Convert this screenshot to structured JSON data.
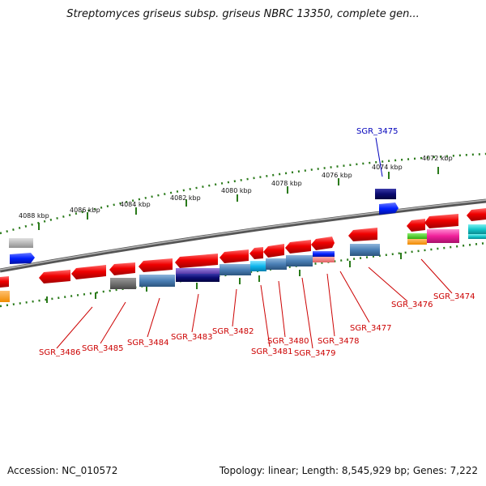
{
  "title": "Streptomyces griseus subsp. griseus NBRC 13350, complete gen...",
  "footer": {
    "accession": "Accession: NC_010572",
    "summary": "Topology: linear; Length: 8,545,929 bp; Genes: 7,222"
  },
  "scale_labels": [
    "4088 kbp",
    "4086 kbp",
    "4084 kbp",
    "4082 kbp",
    "4080 kbp",
    "4078 kbp",
    "4076 kbp",
    "4074 kbp",
    "4072 kbp"
  ],
  "gene_labels": [
    {
      "name": "SGR_3486",
      "color": "#cc0000"
    },
    {
      "name": "SGR_3485",
      "color": "#cc0000"
    },
    {
      "name": "SGR_3484",
      "color": "#cc0000"
    },
    {
      "name": "SGR_3483",
      "color": "#cc0000"
    },
    {
      "name": "SGR_3482",
      "color": "#cc0000"
    },
    {
      "name": "SGR_3481",
      "color": "#cc0000"
    },
    {
      "name": "SGR_3480",
      "color": "#cc0000"
    },
    {
      "name": "SGR_3479",
      "color": "#cc0000"
    },
    {
      "name": "SGR_3478",
      "color": "#cc0000"
    },
    {
      "name": "SGR_3477",
      "color": "#cc0000"
    },
    {
      "name": "SGR_3476",
      "color": "#cc0000"
    },
    {
      "name": "SGR_3474",
      "color": "#cc0000"
    },
    {
      "name": "SGR_3475",
      "color": "#0000bb"
    }
  ],
  "colors": {
    "gene_red": "#e00000",
    "backbone": "#7a7a7a",
    "tick_green": "#2a7a1a"
  }
}
